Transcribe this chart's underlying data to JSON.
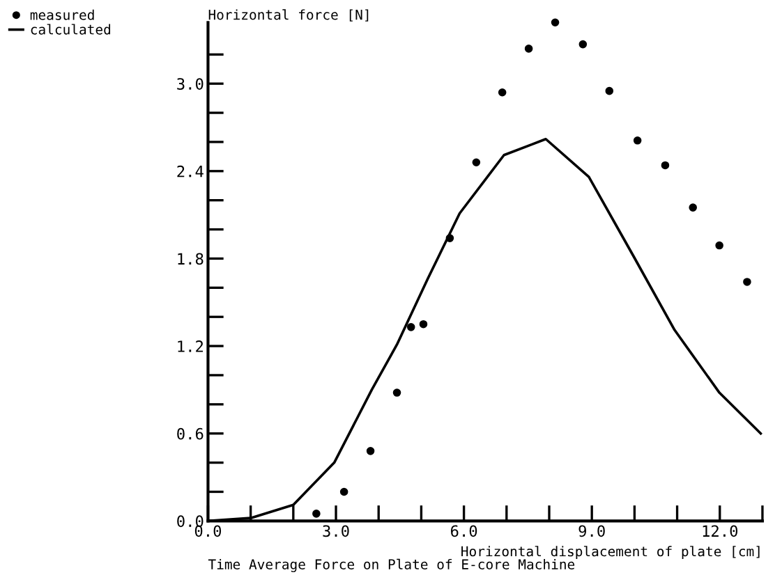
{
  "chart_data": {
    "type": "scatter",
    "title": "Time Average Force on Plate of E-core Machine",
    "xlabel": "Horizontal displacement of plate [cm]",
    "ylabel": "Horizontal force [N]",
    "xlim": [
      0,
      13.0
    ],
    "ylim": [
      0,
      3.42
    ],
    "xticks": [
      {
        "value": 0,
        "label": "0.0"
      },
      {
        "value": 1,
        "label": null
      },
      {
        "value": 2,
        "label": null
      },
      {
        "value": 3,
        "label": "3.0"
      },
      {
        "value": 4,
        "label": null
      },
      {
        "value": 5,
        "label": null
      },
      {
        "value": 6,
        "label": "6.0"
      },
      {
        "value": 7,
        "label": null
      },
      {
        "value": 8,
        "label": null
      },
      {
        "value": 9,
        "label": "9.0"
      },
      {
        "value": 10,
        "label": null
      },
      {
        "value": 11,
        "label": null
      },
      {
        "value": 12,
        "label": "12.0"
      },
      {
        "value": 13,
        "label": null
      }
    ],
    "yticks": [
      {
        "value": 0,
        "label": "0.0"
      },
      {
        "value": 0.2,
        "label": null
      },
      {
        "value": 0.4,
        "label": null
      },
      {
        "value": 0.6,
        "label": "0.6"
      },
      {
        "value": 0.8,
        "label": null
      },
      {
        "value": 1.0,
        "label": null
      },
      {
        "value": 1.2,
        "label": "1.2"
      },
      {
        "value": 1.4,
        "label": null
      },
      {
        "value": 1.6,
        "label": null
      },
      {
        "value": 1.8,
        "label": "1.8"
      },
      {
        "value": 2.0,
        "label": null
      },
      {
        "value": 2.2,
        "label": null
      },
      {
        "value": 2.4,
        "label": "2.4"
      },
      {
        "value": 2.6,
        "label": null
      },
      {
        "value": 2.8,
        "label": null
      },
      {
        "value": 3.0,
        "label": "3.0"
      },
      {
        "value": 3.2,
        "label": null
      }
    ],
    "grid": false,
    "legend": "top left",
    "series": [
      {
        "name": "measured",
        "marker": "circle",
        "color": "#000000",
        "x": [
          2.54,
          3.19,
          3.81,
          4.43,
          4.76,
          5.05,
          5.67,
          6.29,
          6.9,
          7.52,
          8.14,
          8.79,
          9.41,
          10.07,
          10.72,
          11.37,
          11.99,
          12.64
        ],
        "values": [
          0.05,
          0.2,
          0.48,
          0.88,
          1.33,
          1.35,
          1.94,
          2.46,
          2.94,
          3.24,
          3.42,
          3.27,
          2.95,
          2.61,
          2.44,
          2.15,
          1.89,
          1.64
        ]
      },
      {
        "name": "calculated",
        "type": "line",
        "marker": "none",
        "line_style": "solid",
        "color": "#000000",
        "x": [
          0,
          1.0,
          2.0,
          2.96,
          3.84,
          4.43,
          5.15,
          5.9,
          6.94,
          7.92,
          8.93,
          9.97,
          10.94,
          11.99,
          12.96
        ],
        "values": [
          0,
          0.02,
          0.11,
          0.4,
          0.9,
          1.21,
          1.66,
          2.11,
          2.51,
          2.62,
          2.36,
          1.82,
          1.31,
          0.88,
          0.6
        ]
      }
    ]
  }
}
